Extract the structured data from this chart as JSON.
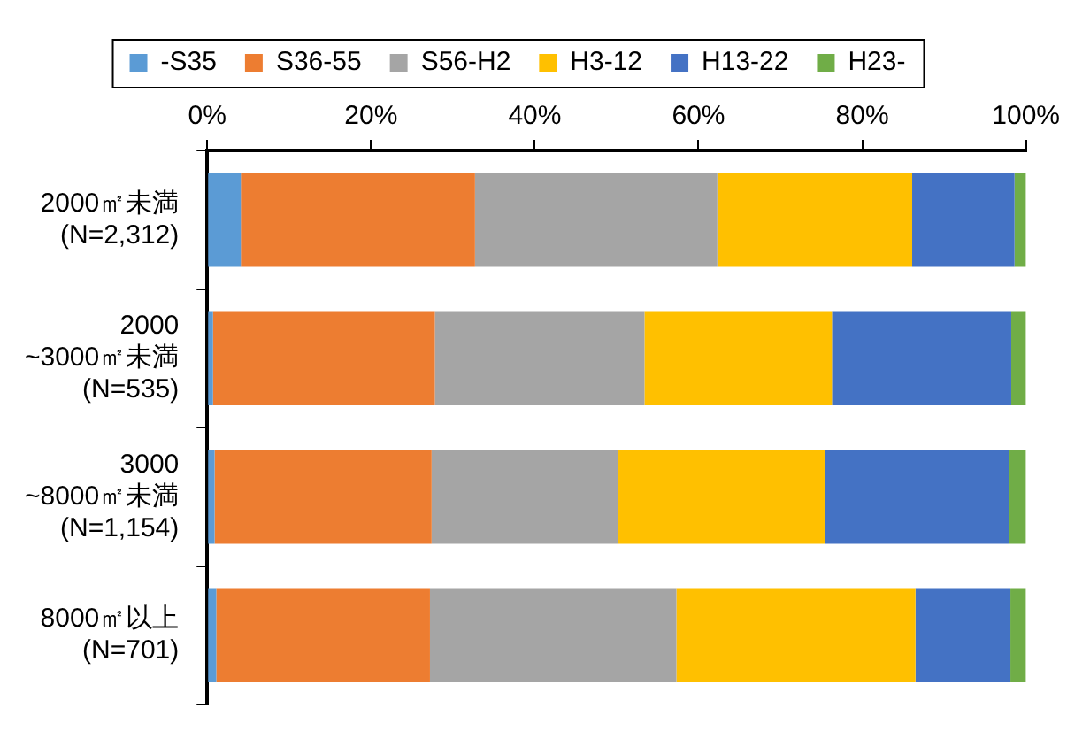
{
  "chart_data": {
    "type": "bar",
    "orientation": "horizontal",
    "stacked": true,
    "categories": [
      "2000㎡未満\n(N=2,312)",
      "2000\n~3000㎡未満\n(N=535)",
      "3000\n~8000㎡未満\n(N=1,154)",
      "8000㎡以上\n(N=701)"
    ],
    "series": [
      {
        "name": "-S35",
        "color": "#5b9bd5",
        "values": [
          4.1,
          0.7,
          0.9,
          1.1
        ]
      },
      {
        "name": "S36-55",
        "color": "#ed7d31",
        "values": [
          28.6,
          27.1,
          26.5,
          26.1
        ]
      },
      {
        "name": "S56-H2",
        "color": "#a5a5a5",
        "values": [
          29.6,
          25.6,
          22.8,
          30.1
        ]
      },
      {
        "name": "H3-12",
        "color": "#ffc000",
        "values": [
          23.8,
          22.9,
          25.2,
          29.2
        ]
      },
      {
        "name": "H13-22",
        "color": "#4472c4",
        "values": [
          12.5,
          21.9,
          22.5,
          11.6
        ]
      },
      {
        "name": "H23-",
        "color": "#70ad47",
        "values": [
          1.4,
          1.8,
          2.1,
          1.9
        ]
      }
    ],
    "xlim": [
      0,
      100
    ],
    "xticks": [
      {
        "value": 0,
        "label": "0%"
      },
      {
        "value": 20,
        "label": "20%"
      },
      {
        "value": 40,
        "label": "40%"
      },
      {
        "value": 60,
        "label": "60%"
      },
      {
        "value": 80,
        "label": "80%"
      },
      {
        "value": 100,
        "label": "100%"
      }
    ],
    "grid": false,
    "legend": "top"
  }
}
